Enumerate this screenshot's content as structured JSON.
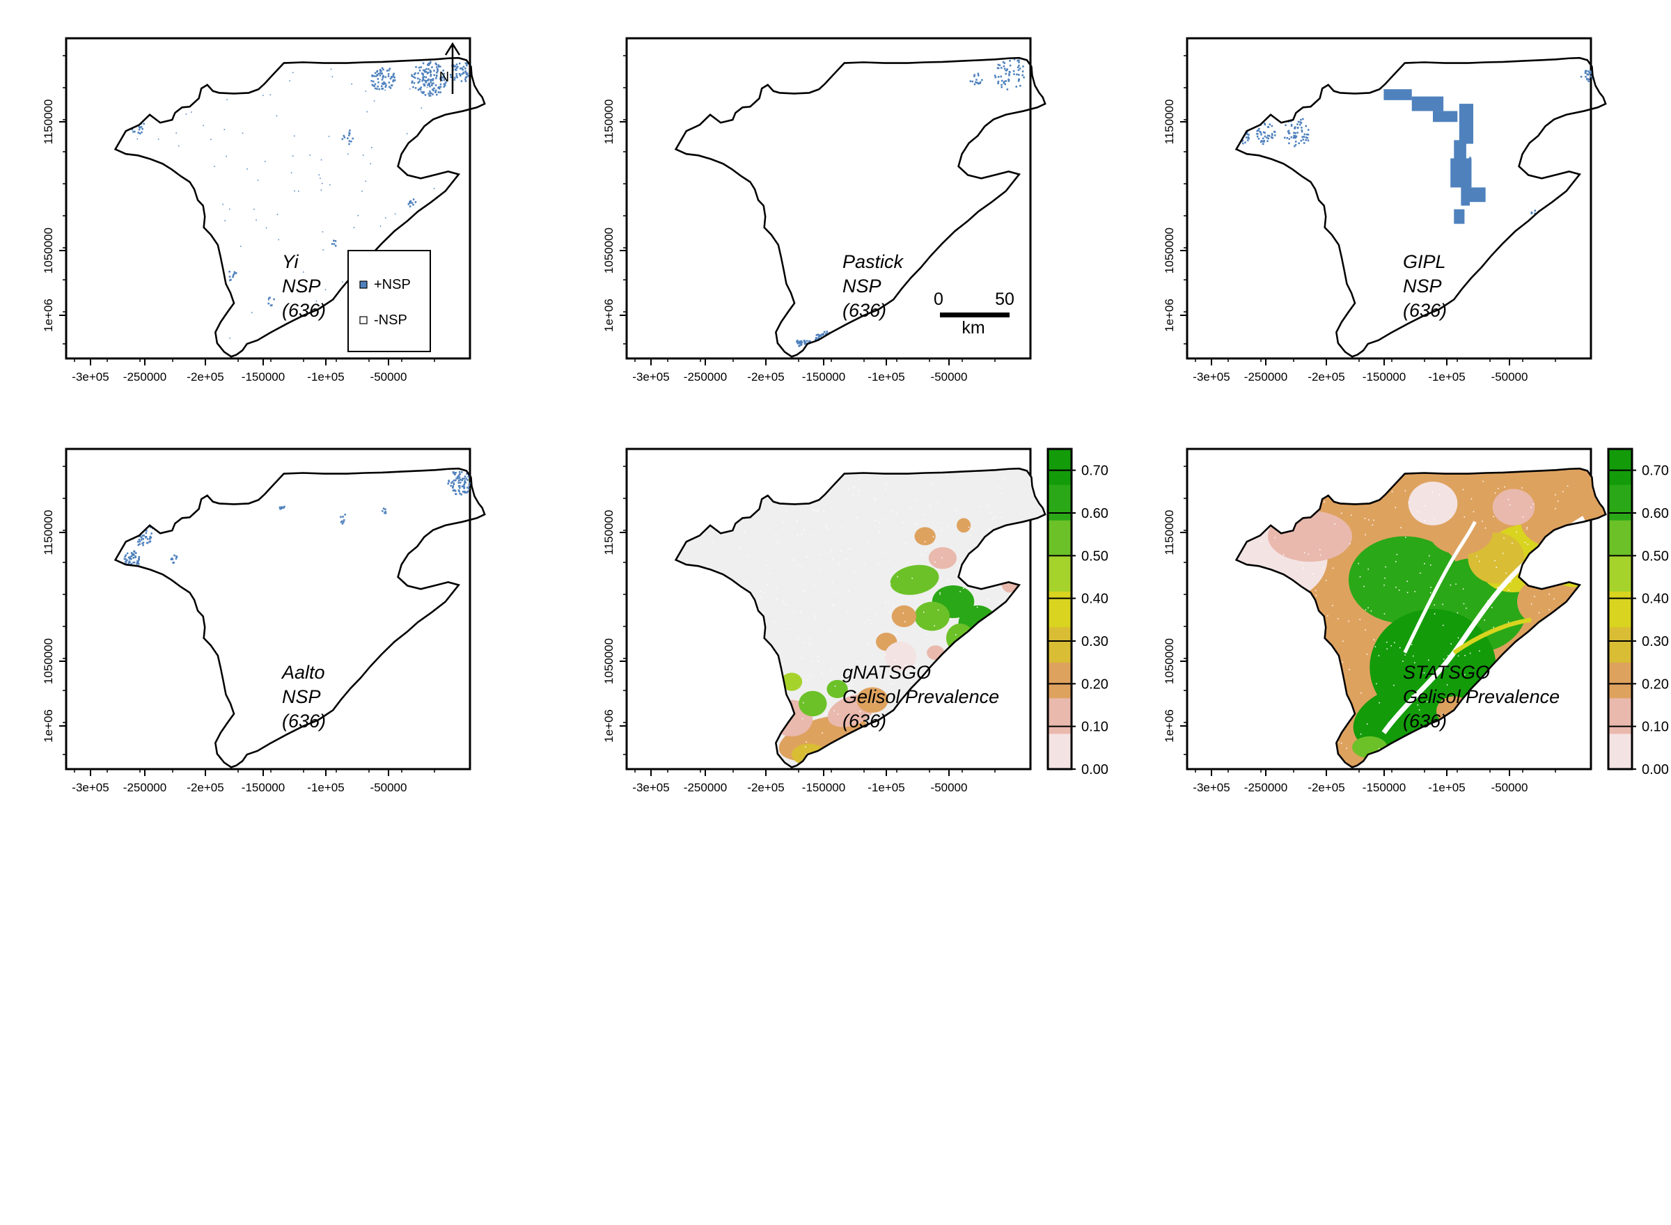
{
  "figure": {
    "xticks": [
      "-3e+05",
      "-250000",
      "-2e+05",
      "-150000",
      "-1e+05",
      "-50000"
    ],
    "yticks": [
      "1e+06",
      "1050000",
      "1150000"
    ],
    "north_label": "N",
    "legend": {
      "positive": "+NSP",
      "negative": "-NSP"
    },
    "scalebar": {
      "start": "0",
      "end": "50",
      "unit": "km"
    },
    "colorbar": {
      "ticks": [
        "0.00",
        "0.10",
        "0.20",
        "0.30",
        "0.40",
        "0.50",
        "0.60",
        "0.70"
      ],
      "min": 0,
      "max": 0.75
    },
    "colors": {
      "nsp_positive": "#4f81bd",
      "boundary": "#000000",
      "no_data_grey": "#efefef",
      "ramp": [
        "#f4e3e3",
        "#e9b9ad",
        "#dea25f",
        "#d9bd35",
        "#d9d41f",
        "#a6d22c",
        "#6cc128",
        "#2ba817",
        "#139b0a"
      ]
    },
    "panels": [
      {
        "id": "yi",
        "lines": [
          "Yi",
          "NSP",
          "(636)"
        ],
        "type": "nsp"
      },
      {
        "id": "pastick",
        "lines": [
          "Pastick",
          "NSP",
          "(636)"
        ],
        "type": "nsp"
      },
      {
        "id": "gipl",
        "lines": [
          "GIPL",
          "NSP",
          "(636)"
        ],
        "type": "nsp"
      },
      {
        "id": "aalto",
        "lines": [
          "Aalto",
          "NSP",
          "(636)"
        ],
        "type": "nsp"
      },
      {
        "id": "gnatsgo",
        "lines": [
          "gNATSGO",
          "Gelisol Prevalence",
          "(636)"
        ],
        "type": "prevalence"
      },
      {
        "id": "statsgo",
        "lines": [
          "STATSGO",
          "Gelisol Prevalence",
          "(636)"
        ],
        "type": "prevalence"
      }
    ]
  }
}
